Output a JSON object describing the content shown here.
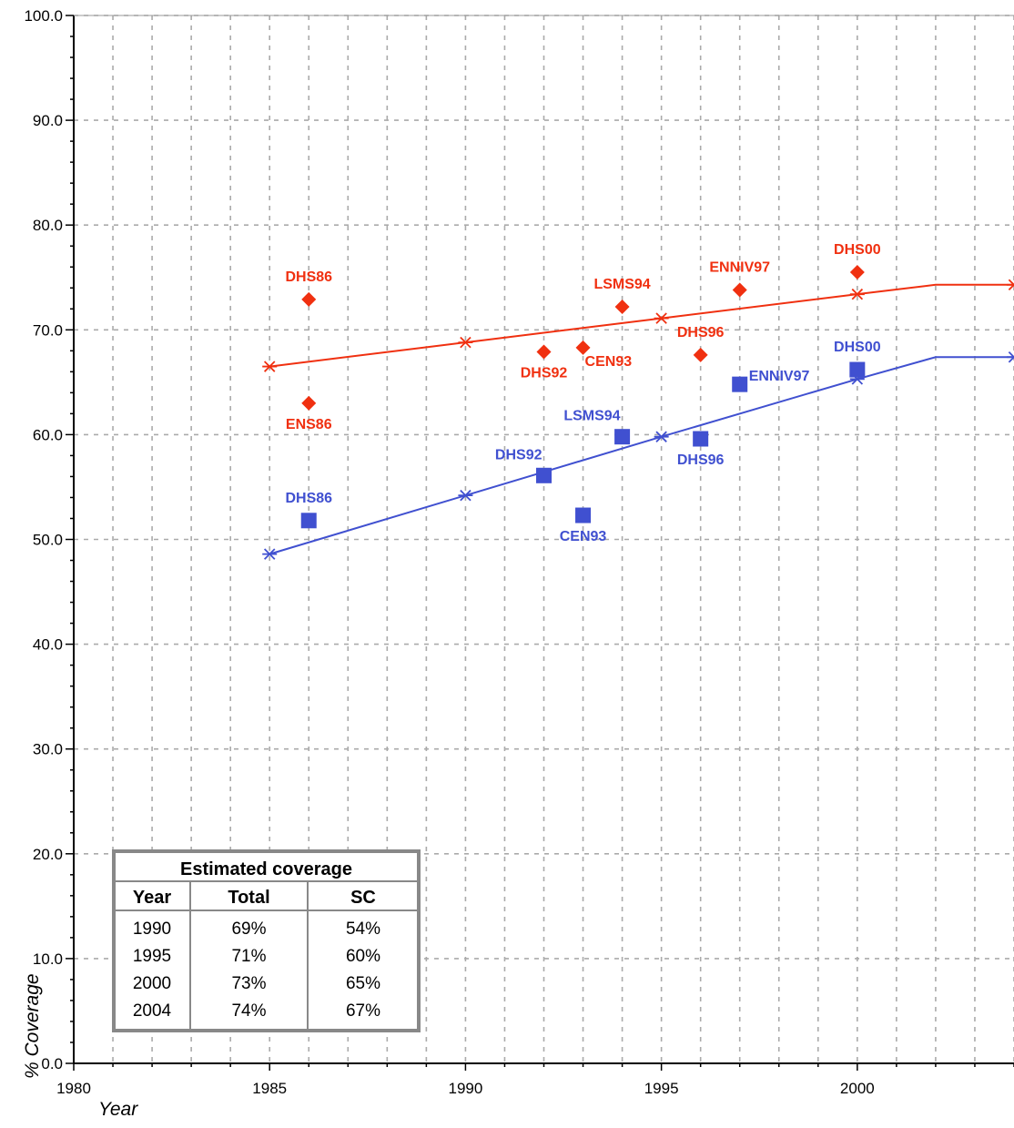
{
  "chart_data": {
    "type": "line",
    "title": "",
    "xlabel": "Year",
    "ylabel": "% Coverage",
    "xlim": [
      1980,
      2004
    ],
    "ylim": [
      0,
      100
    ],
    "grid": true,
    "x_ticks": [
      "1980",
      "1985",
      "1990",
      "1995",
      "2000"
    ],
    "y_ticks": [
      "0.0",
      "10.0",
      "20.0",
      "30.0",
      "40.0",
      "50.0",
      "60.0",
      "70.0",
      "80.0",
      "90.0",
      "100.0"
    ],
    "colors": {
      "total": "#f03010",
      "sc": "#4050d0"
    },
    "series": [
      {
        "key": "total",
        "type": "line",
        "x": [
          1985,
          1990,
          1995,
          2000,
          2002,
          2004
        ],
        "y": [
          66.5,
          68.8,
          71.1,
          73.4,
          74.3,
          74.3
        ],
        "marker_x": [
          1985,
          1990,
          1995,
          2000,
          2004
        ]
      },
      {
        "key": "sc",
        "type": "line",
        "x": [
          1985,
          1990,
          1995,
          2000,
          2002,
          2004
        ],
        "y": [
          48.6,
          54.2,
          59.8,
          65.3,
          67.4,
          67.4
        ],
        "marker_x": [
          1985,
          1990,
          1995,
          2000,
          2004
        ]
      },
      {
        "key": "total",
        "type": "scatter",
        "marker": "diamond",
        "points": [
          {
            "x": 1986,
            "y": 72.9,
            "label": "DHS86",
            "pos": "above"
          },
          {
            "x": 1986,
            "y": 63.0,
            "label": "ENS86",
            "pos": "below"
          },
          {
            "x": 1992,
            "y": 67.9,
            "label": "DHS92",
            "pos": "below"
          },
          {
            "x": 1993,
            "y": 68.3,
            "label": "CEN93",
            "pos": "below-right"
          },
          {
            "x": 1994,
            "y": 72.2,
            "label": "LSMS94",
            "pos": "above"
          },
          {
            "x": 1996,
            "y": 67.6,
            "label": "DHS96",
            "pos": "above"
          },
          {
            "x": 1997,
            "y": 73.8,
            "label": "ENNIV97",
            "pos": "above"
          },
          {
            "x": 2000,
            "y": 75.5,
            "label": "DHS00",
            "pos": "above"
          }
        ]
      },
      {
        "key": "sc",
        "type": "scatter",
        "marker": "square",
        "points": [
          {
            "x": 1986,
            "y": 51.8,
            "label": "DHS86",
            "pos": "above"
          },
          {
            "x": 1992,
            "y": 56.1,
            "label": "DHS92",
            "pos": "above-left"
          },
          {
            "x": 1993,
            "y": 52.3,
            "label": "CEN93",
            "pos": "below"
          },
          {
            "x": 1994,
            "y": 59.8,
            "label": "LSMS94",
            "pos": "above-left"
          },
          {
            "x": 1996,
            "y": 59.6,
            "label": "DHS96",
            "pos": "below"
          },
          {
            "x": 1997,
            "y": 64.8,
            "label": "ENNIV97",
            "pos": "right"
          },
          {
            "x": 2000,
            "y": 66.2,
            "label": "DHS00",
            "pos": "above"
          }
        ]
      }
    ],
    "table": {
      "title": "Estimated coverage",
      "columns": [
        "Year",
        "Total",
        "SC"
      ],
      "rows": [
        [
          "1990",
          "69%",
          "54%"
        ],
        [
          "1995",
          "71%",
          "60%"
        ],
        [
          "2000",
          "73%",
          "65%"
        ],
        [
          "2004",
          "74%",
          "67%"
        ]
      ]
    }
  }
}
